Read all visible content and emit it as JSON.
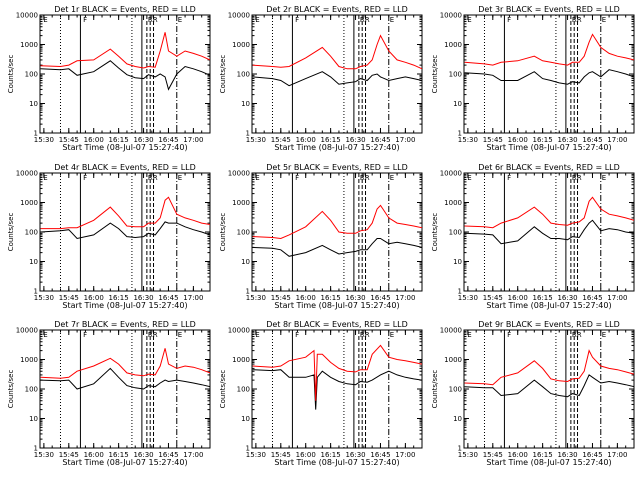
{
  "figure": {
    "xlabel": "Start Time (08-Jul-07 15:27:40)",
    "ylabel": "Counts/sec",
    "xticks": [
      "15:30",
      "15:45",
      "16:00",
      "16:15",
      "16:30",
      "16:45",
      "17:00"
    ],
    "yticks": [
      "1",
      "10",
      "100",
      "1000",
      "10000"
    ],
    "flags": [
      "E",
      "F",
      "RR",
      "E"
    ],
    "colors": {
      "events": "#000000",
      "lld": "#ff0000",
      "axes": "#000000",
      "background": "#ffffff"
    }
  },
  "chart_data": [
    {
      "type": "line",
      "title": "Det 1r BLACK = Events, RED = LLD",
      "x_range": [
        "15:27:40",
        "17:10"
      ],
      "y_scale": "log",
      "ylim": [
        1,
        10000
      ],
      "series": [
        {
          "name": "Events",
          "color": "#000000",
          "x": [
            "15:28",
            "15:40",
            "15:45",
            "15:50",
            "16:00",
            "16:10",
            "16:15",
            "16:20",
            "16:25",
            "16:30",
            "16:33",
            "16:37",
            "16:40",
            "16:43",
            "16:45",
            "16:50",
            "16:55",
            "17:00",
            "17:05",
            "17:10"
          ],
          "values": [
            150,
            140,
            150,
            90,
            120,
            280,
            160,
            95,
            75,
            70,
            95,
            80,
            100,
            80,
            30,
            100,
            180,
            150,
            120,
            90
          ]
        },
        {
          "name": "LLD",
          "color": "#ff0000",
          "x": [
            "15:28",
            "15:40",
            "15:45",
            "15:50",
            "16:00",
            "16:10",
            "16:15",
            "16:20",
            "16:25",
            "16:30",
            "16:33",
            "16:37",
            "16:40",
            "16:43",
            "16:45",
            "16:50",
            "16:55",
            "17:00",
            "17:05",
            "17:10"
          ],
          "values": [
            190,
            180,
            200,
            280,
            300,
            700,
            400,
            220,
            180,
            160,
            180,
            170,
            600,
            2600,
            600,
            400,
            600,
            500,
            400,
            300
          ]
        }
      ]
    },
    {
      "type": "line",
      "title": "Det 2r BLACK = Events, RED = LLD",
      "x_range": [
        "15:27:40",
        "17:10"
      ],
      "y_scale": "log",
      "ylim": [
        1,
        10000
      ],
      "series": [
        {
          "name": "Events",
          "color": "#000000",
          "x": [
            "15:28",
            "15:40",
            "15:45",
            "15:50",
            "16:00",
            "16:10",
            "16:15",
            "16:20",
            "16:25",
            "16:30",
            "16:33",
            "16:37",
            "16:40",
            "16:43",
            "16:45",
            "16:50",
            "16:55",
            "17:00",
            "17:05",
            "17:10"
          ],
          "values": [
            80,
            70,
            60,
            40,
            70,
            120,
            80,
            45,
            50,
            55,
            70,
            60,
            90,
            100,
            80,
            60,
            70,
            80,
            70,
            60
          ]
        },
        {
          "name": "LLD",
          "color": "#ff0000",
          "x": [
            "15:28",
            "15:40",
            "15:45",
            "15:50",
            "16:00",
            "16:10",
            "16:15",
            "16:20",
            "16:25",
            "16:30",
            "16:33",
            "16:37",
            "16:40",
            "16:43",
            "16:45",
            "16:50",
            "16:55",
            "17:00",
            "17:05",
            "17:10"
          ],
          "values": [
            200,
            180,
            170,
            180,
            350,
            800,
            400,
            180,
            150,
            150,
            180,
            200,
            300,
            1000,
            2000,
            600,
            300,
            250,
            200,
            150
          ]
        }
      ]
    },
    {
      "type": "line",
      "title": "Det 3r BLACK = Events, RED = LLD",
      "x_range": [
        "15:27:40",
        "17:10"
      ],
      "y_scale": "log",
      "ylim": [
        1,
        10000
      ],
      "series": [
        {
          "name": "Events",
          "color": "#000000",
          "x": [
            "15:28",
            "15:40",
            "15:45",
            "15:50",
            "16:00",
            "16:10",
            "16:15",
            "16:20",
            "16:25",
            "16:30",
            "16:33",
            "16:37",
            "16:40",
            "16:43",
            "16:45",
            "16:50",
            "16:55",
            "17:00",
            "17:05",
            "17:10"
          ],
          "values": [
            110,
            100,
            90,
            60,
            60,
            120,
            70,
            60,
            50,
            45,
            55,
            50,
            80,
            110,
            120,
            80,
            140,
            120,
            100,
            80
          ]
        },
        {
          "name": "LLD",
          "color": "#ff0000",
          "x": [
            "15:28",
            "15:40",
            "15:45",
            "15:50",
            "16:00",
            "16:10",
            "16:15",
            "16:20",
            "16:25",
            "16:30",
            "16:33",
            "16:37",
            "16:40",
            "16:43",
            "16:45",
            "16:50",
            "16:55",
            "17:00",
            "17:05",
            "17:10"
          ],
          "values": [
            250,
            220,
            200,
            250,
            280,
            400,
            280,
            250,
            220,
            200,
            250,
            250,
            400,
            1200,
            2200,
            800,
            500,
            400,
            350,
            300
          ]
        }
      ]
    },
    {
      "type": "line",
      "title": "Det 4r BLACK = Events, RED = LLD",
      "x_range": [
        "15:27:40",
        "17:10"
      ],
      "y_scale": "log",
      "ylim": [
        1,
        10000
      ],
      "series": [
        {
          "name": "Events",
          "color": "#000000",
          "x": [
            "15:28",
            "15:40",
            "15:45",
            "15:50",
            "16:00",
            "16:10",
            "16:15",
            "16:20",
            "16:25",
            "16:30",
            "16:33",
            "16:37",
            "16:40",
            "16:43",
            "16:45",
            "16:50",
            "16:55",
            "17:00",
            "17:05",
            "17:10"
          ],
          "values": [
            100,
            110,
            120,
            60,
            80,
            200,
            130,
            70,
            65,
            70,
            90,
            80,
            130,
            220,
            200,
            200,
            150,
            120,
            100,
            80
          ]
        },
        {
          "name": "LLD",
          "color": "#ff0000",
          "x": [
            "15:28",
            "15:40",
            "15:45",
            "15:50",
            "16:00",
            "16:10",
            "16:15",
            "16:20",
            "16:25",
            "16:30",
            "16:33",
            "16:37",
            "16:40",
            "16:43",
            "16:45",
            "16:50",
            "16:55",
            "17:00",
            "17:05",
            "17:10"
          ],
          "values": [
            130,
            130,
            140,
            140,
            250,
            700,
            350,
            160,
            150,
            150,
            200,
            200,
            300,
            1200,
            1500,
            400,
            300,
            250,
            200,
            180
          ]
        }
      ]
    },
    {
      "type": "line",
      "title": "Det 5r BLACK = Events, RED = LLD",
      "x_range": [
        "15:27:40",
        "17:10"
      ],
      "y_scale": "log",
      "ylim": [
        1,
        10000
      ],
      "series": [
        {
          "name": "Events",
          "color": "#000000",
          "x": [
            "15:28",
            "15:40",
            "15:45",
            "15:50",
            "16:00",
            "16:10",
            "16:15",
            "16:20",
            "16:25",
            "16:30",
            "16:33",
            "16:37",
            "16:40",
            "16:43",
            "16:45",
            "16:50",
            "16:55",
            "17:00",
            "17:05",
            "17:10"
          ],
          "values": [
            30,
            28,
            25,
            15,
            20,
            35,
            25,
            18,
            20,
            22,
            25,
            25,
            40,
            60,
            60,
            40,
            45,
            40,
            35,
            30
          ]
        },
        {
          "name": "LLD",
          "color": "#ff0000",
          "x": [
            "15:28",
            "15:40",
            "15:45",
            "15:50",
            "16:00",
            "16:10",
            "16:15",
            "16:20",
            "16:25",
            "16:30",
            "16:33",
            "16:37",
            "16:40",
            "16:43",
            "16:45",
            "16:50",
            "16:55",
            "17:00",
            "17:05",
            "17:10"
          ],
          "values": [
            70,
            65,
            60,
            80,
            150,
            500,
            250,
            100,
            90,
            90,
            110,
            120,
            200,
            600,
            800,
            300,
            200,
            180,
            160,
            140
          ]
        }
      ]
    },
    {
      "type": "line",
      "title": "Det 6r BLACK = Events, RED = LLD",
      "x_range": [
        "15:27:40",
        "17:10"
      ],
      "y_scale": "log",
      "ylim": [
        1,
        10000
      ],
      "series": [
        {
          "name": "Events",
          "color": "#000000",
          "x": [
            "15:28",
            "15:40",
            "15:45",
            "15:50",
            "16:00",
            "16:10",
            "16:15",
            "16:20",
            "16:25",
            "16:30",
            "16:33",
            "16:37",
            "16:40",
            "16:43",
            "16:45",
            "16:50",
            "16:55",
            "17:00",
            "17:05",
            "17:10"
          ],
          "values": [
            90,
            85,
            80,
            40,
            50,
            150,
            90,
            60,
            60,
            55,
            70,
            65,
            120,
            200,
            250,
            110,
            130,
            120,
            100,
            90
          ]
        },
        {
          "name": "LLD",
          "color": "#ff0000",
          "x": [
            "15:28",
            "15:40",
            "15:45",
            "15:50",
            "16:00",
            "16:10",
            "16:15",
            "16:20",
            "16:25",
            "16:30",
            "16:33",
            "16:37",
            "16:40",
            "16:43",
            "16:45",
            "16:50",
            "16:55",
            "17:00",
            "17:05",
            "17:10"
          ],
          "values": [
            160,
            150,
            140,
            200,
            300,
            700,
            400,
            200,
            180,
            170,
            200,
            220,
            300,
            1100,
            1500,
            600,
            400,
            350,
            300,
            250
          ]
        }
      ]
    },
    {
      "type": "line",
      "title": "Det 7r BLACK = Events, RED = LLD",
      "x_range": [
        "15:27:40",
        "17:10"
      ],
      "y_scale": "log",
      "ylim": [
        1,
        10000
      ],
      "series": [
        {
          "name": "Events",
          "color": "#000000",
          "x": [
            "15:28",
            "15:40",
            "15:45",
            "15:50",
            "16:00",
            "16:10",
            "16:15",
            "16:20",
            "16:25",
            "16:30",
            "16:33",
            "16:37",
            "16:40",
            "16:43",
            "16:45",
            "16:50",
            "16:55",
            "17:00",
            "17:05",
            "17:10"
          ],
          "values": [
            200,
            190,
            200,
            100,
            150,
            500,
            250,
            130,
            110,
            100,
            130,
            120,
            160,
            200,
            180,
            200,
            180,
            160,
            140,
            120
          ]
        },
        {
          "name": "LLD",
          "color": "#ff0000",
          "x": [
            "15:28",
            "15:40",
            "15:45",
            "15:50",
            "16:00",
            "16:10",
            "16:15",
            "16:20",
            "16:25",
            "16:30",
            "16:33",
            "16:37",
            "16:40",
            "16:43",
            "16:45",
            "16:50",
            "16:55",
            "17:00",
            "17:05",
            "17:10"
          ],
          "values": [
            250,
            230,
            250,
            400,
            600,
            1100,
            700,
            350,
            300,
            280,
            320,
            300,
            600,
            2400,
            700,
            500,
            600,
            550,
            450,
            350
          ]
        }
      ]
    },
    {
      "type": "line",
      "title": "Det 8r BLACK = Events, RED = LLD",
      "x_range": [
        "15:27:40",
        "17:10"
      ],
      "y_scale": "log",
      "ylim": [
        1,
        10000
      ],
      "series": [
        {
          "name": "Events",
          "color": "#000000",
          "x": [
            "15:28",
            "15:40",
            "15:45",
            "15:50",
            "16:00",
            "16:05",
            "16:06",
            "16:07",
            "16:10",
            "16:15",
            "16:20",
            "16:25",
            "16:30",
            "16:33",
            "16:37",
            "16:40",
            "16:45",
            "16:50",
            "16:55",
            "17:00",
            "17:05",
            "17:10"
          ],
          "values": [
            450,
            420,
            450,
            250,
            250,
            300,
            20,
            250,
            400,
            250,
            180,
            150,
            140,
            180,
            170,
            200,
            300,
            400,
            300,
            250,
            220,
            200
          ]
        },
        {
          "name": "LLD",
          "color": "#ff0000",
          "x": [
            "15:28",
            "15:40",
            "15:45",
            "15:50",
            "16:00",
            "16:05",
            "16:06",
            "16:07",
            "16:10",
            "16:15",
            "16:20",
            "16:25",
            "16:30",
            "16:33",
            "16:37",
            "16:40",
            "16:45",
            "16:50",
            "16:55",
            "17:00",
            "17:05",
            "17:10"
          ],
          "values": [
            600,
            550,
            600,
            900,
            1200,
            2000,
            40,
            1500,
            1500,
            800,
            500,
            400,
            380,
            450,
            450,
            1500,
            3000,
            1200,
            1000,
            900,
            800,
            700
          ]
        }
      ]
    },
    {
      "type": "line",
      "title": "Det 9r BLACK = Events, RED = LLD",
      "x_range": [
        "15:27:40",
        "17:10"
      ],
      "y_scale": "log",
      "ylim": [
        1,
        10000
      ],
      "series": [
        {
          "name": "Events",
          "color": "#000000",
          "x": [
            "15:28",
            "15:40",
            "15:45",
            "15:50",
            "16:00",
            "16:10",
            "16:15",
            "16:20",
            "16:25",
            "16:30",
            "16:33",
            "16:37",
            "16:40",
            "16:43",
            "16:45",
            "16:50",
            "16:55",
            "17:00",
            "17:05",
            "17:10"
          ],
          "values": [
            120,
            110,
            110,
            60,
            70,
            200,
            120,
            70,
            60,
            55,
            70,
            60,
            130,
            300,
            250,
            160,
            180,
            160,
            140,
            120
          ]
        },
        {
          "name": "LLD",
          "color": "#ff0000",
          "x": [
            "15:28",
            "15:40",
            "15:45",
            "15:50",
            "16:00",
            "16:10",
            "16:15",
            "16:20",
            "16:25",
            "16:30",
            "16:33",
            "16:37",
            "16:40",
            "16:43",
            "16:45",
            "16:50",
            "16:55",
            "17:00",
            "17:05",
            "17:10"
          ],
          "values": [
            160,
            150,
            140,
            250,
            350,
            900,
            500,
            220,
            190,
            180,
            220,
            230,
            400,
            2000,
            1200,
            600,
            500,
            450,
            380,
            320
          ]
        }
      ]
    }
  ]
}
